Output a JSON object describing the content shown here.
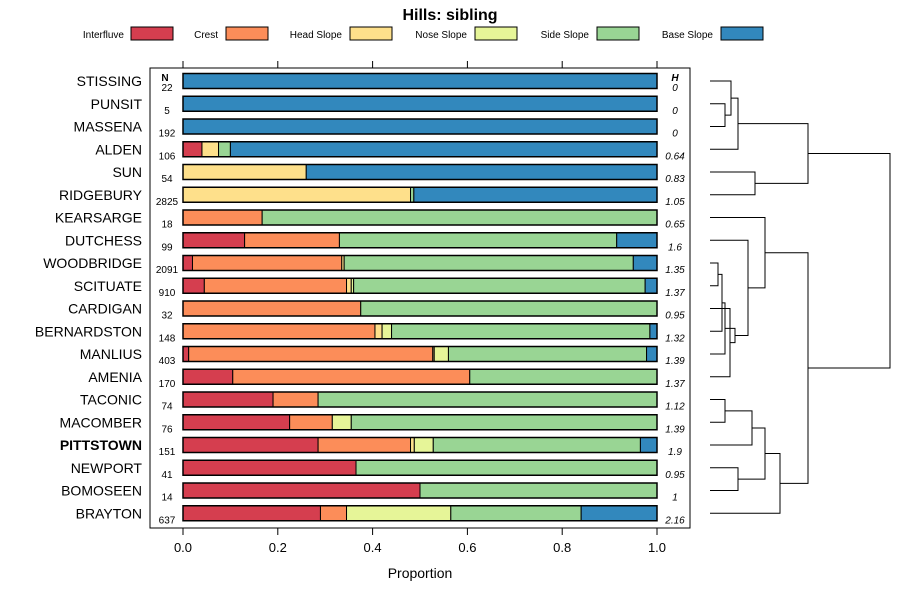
{
  "chart_data": {
    "type": "stacked-bar",
    "title": "Hills: sibling",
    "xlabel": "Proportion",
    "xlim": [
      0,
      1
    ],
    "xticks": [
      "0.0",
      "0.2",
      "0.4",
      "0.6",
      "0.8",
      "1.0"
    ],
    "n_header": "N",
    "h_header": "H",
    "highlight": "PITTSTOWN",
    "series": [
      {
        "name": "Interfluve",
        "color": "#d53e4f"
      },
      {
        "name": "Crest",
        "color": "#fc8d59"
      },
      {
        "name": "Head Slope",
        "color": "#fee08b"
      },
      {
        "name": "Nose Slope",
        "color": "#e6f598"
      },
      {
        "name": "Side Slope",
        "color": "#99d594"
      },
      {
        "name": "Base Slope",
        "color": "#3288bd"
      }
    ],
    "rows": [
      {
        "label": "STISSING",
        "n": "22",
        "h": "0",
        "values": [
          0,
          0,
          0,
          0,
          0,
          1
        ]
      },
      {
        "label": "PUNSIT",
        "n": "5",
        "h": "0",
        "values": [
          0,
          0,
          0,
          0,
          0,
          1
        ]
      },
      {
        "label": "MASSENA",
        "n": "192",
        "h": "0",
        "values": [
          0,
          0,
          0,
          0,
          0,
          1
        ]
      },
      {
        "label": "ALDEN",
        "n": "106",
        "h": "0.64",
        "values": [
          0.04,
          0,
          0.035,
          0,
          0.025,
          0.9
        ]
      },
      {
        "label": "SUN",
        "n": "54",
        "h": "0.83",
        "values": [
          0,
          0,
          0.26,
          0,
          0,
          0.74
        ]
      },
      {
        "label": "RIDGEBURY",
        "n": "2825",
        "h": "1.05",
        "values": [
          0,
          0,
          0.48,
          0,
          0.007,
          0.513
        ]
      },
      {
        "label": "KEARSARGE",
        "n": "18",
        "h": "0.65",
        "values": [
          0,
          0.167,
          0,
          0,
          0.833,
          0
        ]
      },
      {
        "label": "DUTCHESS",
        "n": "99",
        "h": "1.6",
        "values": [
          0.13,
          0.2,
          0,
          0,
          0.585,
          0.085
        ]
      },
      {
        "label": "WOODBRIDGE",
        "n": "2091",
        "h": "1.35",
        "values": [
          0.02,
          0.315,
          0.005,
          0,
          0.61,
          0.05
        ]
      },
      {
        "label": "SCITUATE",
        "n": "910",
        "h": "1.37",
        "values": [
          0.045,
          0.3,
          0.01,
          0.005,
          0.615,
          0.025
        ]
      },
      {
        "label": "CARDIGAN",
        "n": "32",
        "h": "0.95",
        "values": [
          0,
          0.375,
          0,
          0,
          0.625,
          0
        ]
      },
      {
        "label": "BERNARDSTON",
        "n": "148",
        "h": "1.32",
        "values": [
          0,
          0.405,
          0.015,
          0.02,
          0.545,
          0.015
        ]
      },
      {
        "label": "MANLIUS",
        "n": "403",
        "h": "1.39",
        "values": [
          0.012,
          0.515,
          0.003,
          0.03,
          0.418,
          0.022
        ]
      },
      {
        "label": "AMENIA",
        "n": "170",
        "h": "1.37",
        "values": [
          0.105,
          0.5,
          0,
          0,
          0.395,
          0
        ]
      },
      {
        "label": "TACONIC",
        "n": "74",
        "h": "1.12",
        "values": [
          0.19,
          0.095,
          0,
          0,
          0.715,
          0
        ]
      },
      {
        "label": "MACOMBER",
        "n": "76",
        "h": "1.39",
        "values": [
          0.225,
          0.09,
          0,
          0.04,
          0.645,
          0
        ]
      },
      {
        "label": "PITTSTOWN",
        "n": "151",
        "h": "1.9",
        "values": [
          0.285,
          0.195,
          0.008,
          0.04,
          0.437,
          0.035
        ]
      },
      {
        "label": "NEWPORT",
        "n": "41",
        "h": "0.95",
        "values": [
          0.365,
          0,
          0,
          0,
          0.635,
          0
        ]
      },
      {
        "label": "BOMOSEEN",
        "n": "14",
        "h": "1",
        "values": [
          0.5,
          0,
          0,
          0,
          0.5,
          0
        ]
      },
      {
        "label": "BRAYTON",
        "n": "637",
        "h": "2.16",
        "values": [
          0.29,
          0.055,
          0,
          0.22,
          0.275,
          0.16
        ]
      }
    ]
  }
}
